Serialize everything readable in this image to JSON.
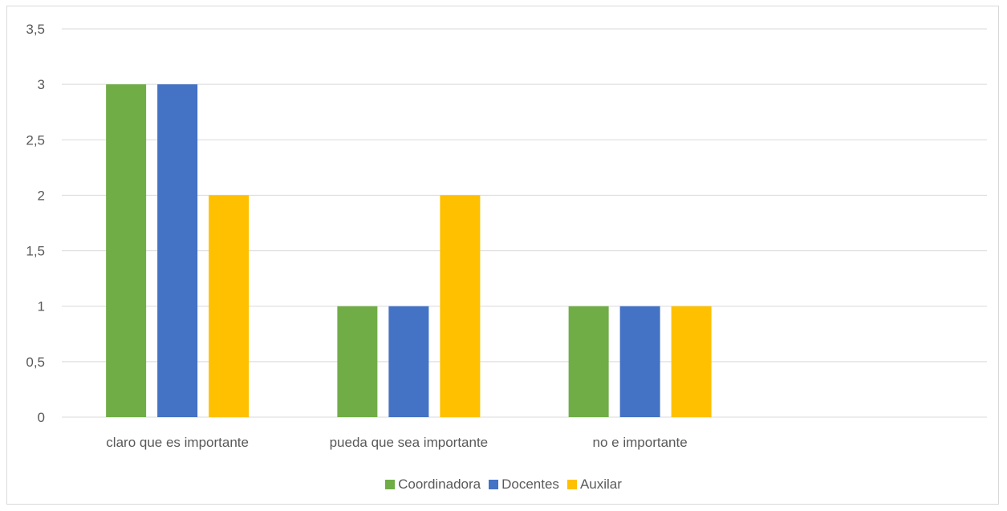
{
  "chart_data": {
    "type": "bar",
    "title": "",
    "xlabel": "",
    "ylabel": "",
    "ylim": [
      0,
      3.5
    ],
    "yticks": [
      "0",
      "0,5",
      "1",
      "1,5",
      "2",
      "2,5",
      "3",
      "3,5"
    ],
    "grid": true,
    "legend_position": "bottom",
    "categories": [
      "claro que es importante",
      "pueda que sea importante",
      "no e importante",
      ""
    ],
    "series": [
      {
        "name": "Coordinadora",
        "color": "#70ad47",
        "values": [
          3,
          1,
          1,
          null
        ]
      },
      {
        "name": "Docentes",
        "color": "#4472c4",
        "values": [
          3,
          1,
          1,
          null
        ]
      },
      {
        "name": "Auxilar",
        "color": "#ffc000",
        "values": [
          2,
          2,
          1,
          null
        ]
      }
    ]
  }
}
